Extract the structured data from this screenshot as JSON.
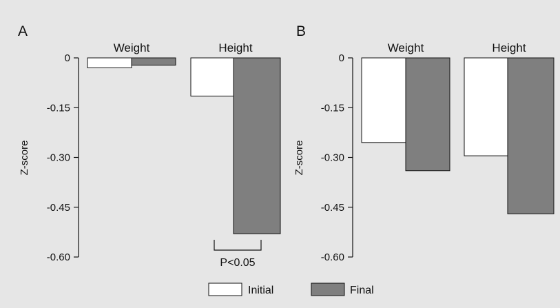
{
  "colors": {
    "background": "#e6e6e6",
    "initial_fill": "#ffffff",
    "final_fill": "#7f7f7f",
    "stroke": "#111111"
  },
  "legend": {
    "position": "bottom-center",
    "items": [
      {
        "label": "Initial",
        "color": "#ffffff"
      },
      {
        "label": "Final",
        "color": "#7f7f7f"
      }
    ]
  },
  "chart_data": [
    {
      "panel_label": "A",
      "type": "bar",
      "ylabel": "Z-score",
      "ylim": [
        -0.6,
        0
      ],
      "yticks": [
        0,
        -0.15,
        -0.3,
        -0.45,
        -0.6
      ],
      "ytick_labels": [
        "0",
        "-0.15",
        "-0.30",
        "-0.45",
        "-0.60"
      ],
      "grid": false,
      "categories": [
        "Weight",
        "Height"
      ],
      "series": [
        {
          "name": "Initial",
          "values": [
            -0.03,
            -0.115
          ]
        },
        {
          "name": "Final",
          "values": [
            -0.022,
            -0.53
          ]
        }
      ],
      "annotation": {
        "text": "P<0.05",
        "category": "Height"
      }
    },
    {
      "panel_label": "B",
      "type": "bar",
      "ylabel": "Z-score",
      "ylim": [
        -0.6,
        0
      ],
      "yticks": [
        0,
        -0.15,
        -0.3,
        -0.45,
        -0.6
      ],
      "ytick_labels": [
        "0",
        "-0.15",
        "-0.30",
        "-0.45",
        "-0.60"
      ],
      "grid": false,
      "categories": [
        "Weight",
        "Height"
      ],
      "series": [
        {
          "name": "Initial",
          "values": [
            -0.255,
            -0.295
          ]
        },
        {
          "name": "Final",
          "values": [
            -0.34,
            -0.47
          ]
        }
      ]
    }
  ]
}
